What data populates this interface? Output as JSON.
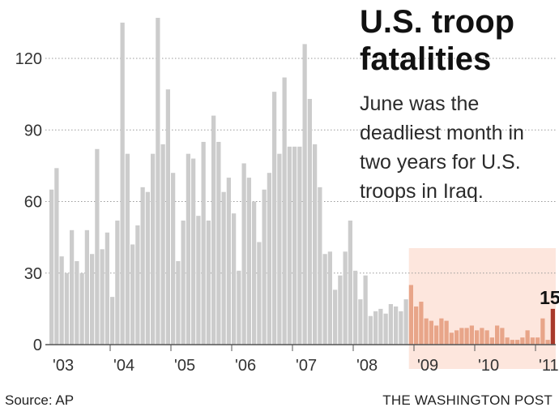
{
  "title": "U.S. troop fatalities",
  "subtitle": "June was the deadliest month in two years for U.S. troops in Iraq.",
  "source": "Source: AP",
  "credit": "THE WASHINGTON POST",
  "highlight_label": "15",
  "chart_data": {
    "type": "bar",
    "title": "U.S. troop fatalities",
    "xlabel": "",
    "ylabel": "",
    "ylim": [
      0,
      140
    ],
    "yticks": [
      0,
      30,
      60,
      90,
      120
    ],
    "xtick_labels": [
      "'03",
      "'04",
      "'05",
      "'06",
      "'07",
      "'08",
      "'09",
      "'10",
      "'11"
    ],
    "grid": true,
    "highlight_region_start_index": 71,
    "highlighted_index": 99,
    "colors": {
      "bars": "#cccccc",
      "recent_bars": "#e8a589",
      "highlight_bar": "#a8392a",
      "region": "#fde6dd"
    },
    "values": [
      65,
      74,
      37,
      30,
      48,
      35,
      30,
      48,
      38,
      82,
      40,
      47,
      20,
      52,
      135,
      80,
      42,
      50,
      66,
      64,
      80,
      137,
      84,
      107,
      72,
      35,
      52,
      80,
      78,
      54,
      85,
      52,
      96,
      85,
      64,
      70,
      55,
      31,
      76,
      70,
      60,
      43,
      65,
      72,
      106,
      80,
      112,
      83,
      83,
      83,
      126,
      103,
      84,
      66,
      38,
      39,
      23,
      29,
      39,
      52,
      31,
      19,
      29,
      12,
      14,
      15,
      13,
      17,
      16,
      14,
      19,
      25,
      16,
      18,
      11,
      10,
      8,
      11,
      10,
      5,
      6,
      7,
      7,
      8,
      6,
      7,
      6,
      3,
      8,
      7,
      3,
      2,
      2,
      3,
      6,
      3,
      3,
      11,
      2,
      15
    ]
  }
}
